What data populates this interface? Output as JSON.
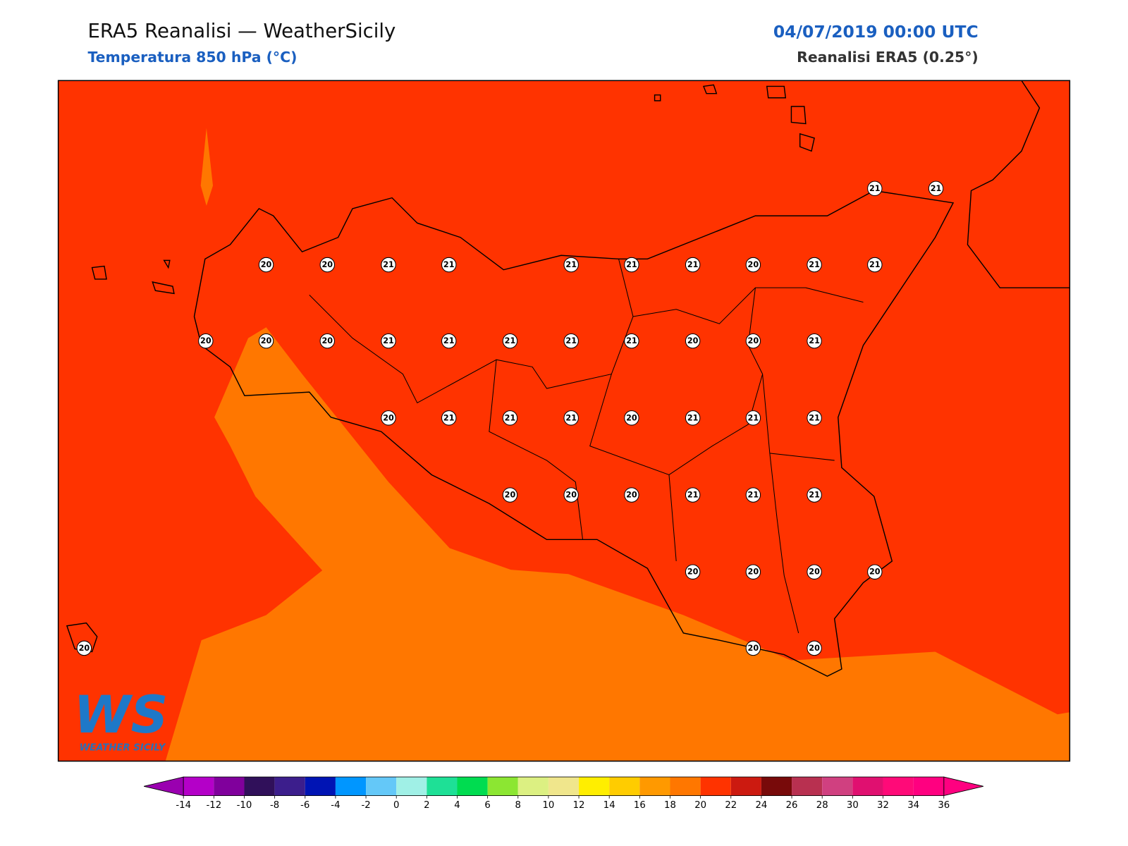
{
  "header": {
    "title": "ERA5 Reanalisi — WeatherSicily",
    "subtitle": "Temperatura 850 hPa (°C)",
    "date": "04/07/2019 00:00 UTC",
    "source": "Reanalisi ERA5 (0.25°)"
  },
  "map": {
    "labels": [
      21,
      21,
      20,
      20,
      21,
      21,
      21,
      21,
      21,
      20,
      21,
      21,
      20,
      20,
      20,
      21,
      21,
      21,
      21,
      21,
      20,
      20,
      21,
      20,
      21,
      21,
      21,
      20,
      21,
      21,
      21,
      20,
      20,
      20,
      21,
      21,
      21,
      20,
      20,
      20,
      20,
      20,
      20,
      20
    ]
  },
  "logo": {
    "text": "WS",
    "subtitle": "WEATHER SICILY"
  },
  "colorbar": {
    "ticks": [
      -14,
      -12,
      -10,
      -8,
      -6,
      -4,
      -2,
      0,
      2,
      4,
      6,
      8,
      10,
      12,
      14,
      16,
      18,
      20,
      22,
      24,
      26,
      28,
      30,
      32,
      34,
      36
    ],
    "under": "#9a00b0",
    "colors": [
      "#b400c8",
      "#80009c",
      "#30105a",
      "#3c1e8c",
      "#0014b4",
      "#0096ff",
      "#64c8f8",
      "#a0f0e6",
      "#1ee096",
      "#00dc50",
      "#8ce632",
      "#dcf082",
      "#f0e68c",
      "#ffee00",
      "#ffcc00",
      "#ff9900",
      "#ff7700",
      "#ff3300",
      "#cc1a10",
      "#780a0a",
      "#b83050",
      "#d04080",
      "#e01070",
      "#ff0a78",
      "#ff0080"
    ],
    "over": "#ff0080"
  }
}
